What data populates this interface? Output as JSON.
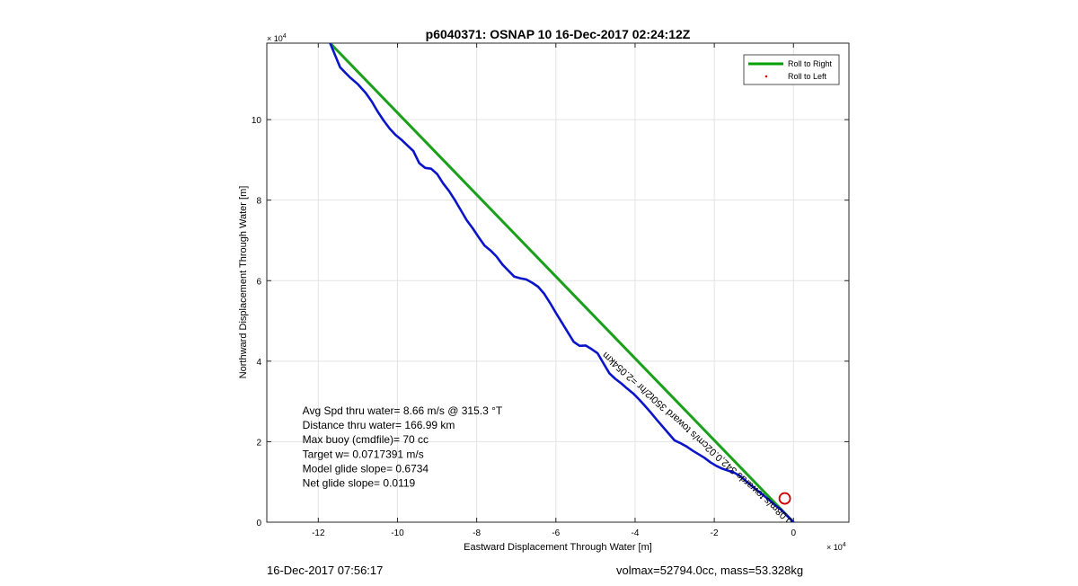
{
  "footer": {
    "date": "16-Dec-2017 07:56:17",
    "vol_mass": "volmax=52794.0cc, mass=53.328kg"
  },
  "chart_data": {
    "type": "line",
    "title": "p6040371: OSNAP 10 16-Dec-2017 02:24:12Z",
    "xlabel": "Eastward Displacement Through Water [m]",
    "ylabel": "Northward Displacement Through Water [m]",
    "x_exponent_label": "× 10",
    "exponent": "4",
    "y_exponent_label": "× 10",
    "xlim": [
      -133000,
      14000
    ],
    "ylim": [
      0,
      119000
    ],
    "x_ticks": [
      -120000,
      -100000,
      -80000,
      -60000,
      -40000,
      -20000,
      0
    ],
    "x_tick_labels": [
      "-12",
      "-10",
      "-8",
      "-6",
      "-4",
      "-2",
      "0"
    ],
    "y_ticks": [
      0,
      20000,
      40000,
      60000,
      80000,
      100000
    ],
    "y_tick_labels": [
      "0",
      "2",
      "4",
      "6",
      "8",
      "10"
    ],
    "grid": true,
    "legend_position": "top-right",
    "legend": [
      {
        "label": "Roll to Right",
        "color": "#00a000",
        "marker": "line"
      },
      {
        "label": "Roll to Left",
        "color": "#cc0000",
        "marker": "dot"
      }
    ],
    "series": [
      {
        "name": "Roll to Right",
        "color": "#1aa01a",
        "points": [
          [
            -117000,
            119000
          ],
          [
            0,
            0
          ]
        ]
      },
      {
        "color": "#0a14c8",
        "points": [
          [
            -117000,
            119000
          ],
          [
            -114500,
            113000
          ],
          [
            -112000,
            110500
          ],
          [
            -110000,
            108800
          ],
          [
            -108000,
            106600
          ],
          [
            -106500,
            104500
          ],
          [
            -105000,
            102000
          ],
          [
            -103500,
            99800
          ],
          [
            -102000,
            97800
          ],
          [
            -100500,
            96200
          ],
          [
            -99000,
            95000
          ],
          [
            -97500,
            93600
          ],
          [
            -96000,
            92200
          ],
          [
            -94500,
            89200
          ],
          [
            -93000,
            88000
          ],
          [
            -91500,
            87800
          ],
          [
            -90000,
            86500
          ],
          [
            -88500,
            84200
          ],
          [
            -87000,
            82300
          ],
          [
            -85500,
            80000
          ],
          [
            -84000,
            77500
          ],
          [
            -82500,
            75000
          ],
          [
            -81000,
            73000
          ],
          [
            -79500,
            70800
          ],
          [
            -78000,
            68700
          ],
          [
            -76500,
            67500
          ],
          [
            -75000,
            66000
          ],
          [
            -73500,
            64000
          ],
          [
            -72000,
            62500
          ],
          [
            -70500,
            61000
          ],
          [
            -69000,
            60600
          ],
          [
            -67500,
            60300
          ],
          [
            -66000,
            59500
          ],
          [
            -64500,
            58500
          ],
          [
            -63000,
            56800
          ],
          [
            -61500,
            54500
          ],
          [
            -60000,
            52000
          ],
          [
            -58500,
            49600
          ],
          [
            -57000,
            47200
          ],
          [
            -55500,
            44800
          ],
          [
            -54000,
            43800
          ],
          [
            -52500,
            43900
          ],
          [
            -51000,
            43000
          ],
          [
            -49500,
            42000
          ],
          [
            -48000,
            39500
          ],
          [
            -46500,
            37000
          ],
          [
            -45000,
            35600
          ],
          [
            -43500,
            34500
          ],
          [
            -42000,
            33200
          ],
          [
            -40500,
            32000
          ],
          [
            -39000,
            30500
          ],
          [
            -37500,
            28900
          ],
          [
            -36000,
            27200
          ],
          [
            -34500,
            25400
          ],
          [
            -33000,
            23700
          ],
          [
            -31500,
            22000
          ],
          [
            -30000,
            20300
          ],
          [
            -28500,
            19600
          ],
          [
            -27000,
            18800
          ],
          [
            -25500,
            17800
          ],
          [
            -24000,
            16900
          ],
          [
            -22500,
            16000
          ],
          [
            -21000,
            14900
          ],
          [
            -19500,
            14000
          ],
          [
            -18000,
            13300
          ],
          [
            -16500,
            12800
          ],
          [
            -15000,
            12300
          ],
          [
            -13500,
            11500
          ],
          [
            -12000,
            10200
          ],
          [
            -10500,
            9000
          ],
          [
            -9000,
            7800
          ],
          [
            -7500,
            6600
          ],
          [
            -6000,
            5400
          ],
          [
            -4500,
            4100
          ],
          [
            -3000,
            3000
          ],
          [
            -1500,
            1500
          ],
          [
            0,
            0
          ]
        ]
      }
    ],
    "marker": {
      "label": "Roll to Left",
      "x": -2200,
      "y": 5900,
      "color": "#cc0000"
    },
    "annotations": [
      {
        "text": "Avg Spd thru water=  8.66 m/s @ 315.3 °T",
        "x": -124000,
        "y": 26800
      },
      {
        "text": "Distance thru water= 166.99 km",
        "x": -124000,
        "y": 23200
      },
      {
        "text": "Max buoy (cmdfile)= 70 cc",
        "x": -124000,
        "y": 19600
      },
      {
        "text": "Target w= 0.0717391 m/s",
        "x": -124000,
        "y": 16000
      },
      {
        "text": "Model glide slope= 0.6734",
        "x": -124000,
        "y": 12400
      },
      {
        "text": "Net glide slope= 0.0119",
        "x": -124000,
        "y": 8800
      }
    ],
    "surface_label": {
      "text": "0.08m/s towards 342,0.02cm/s toward 350t2/hr =2.054km",
      "x": 0,
      "y": 0
    }
  }
}
